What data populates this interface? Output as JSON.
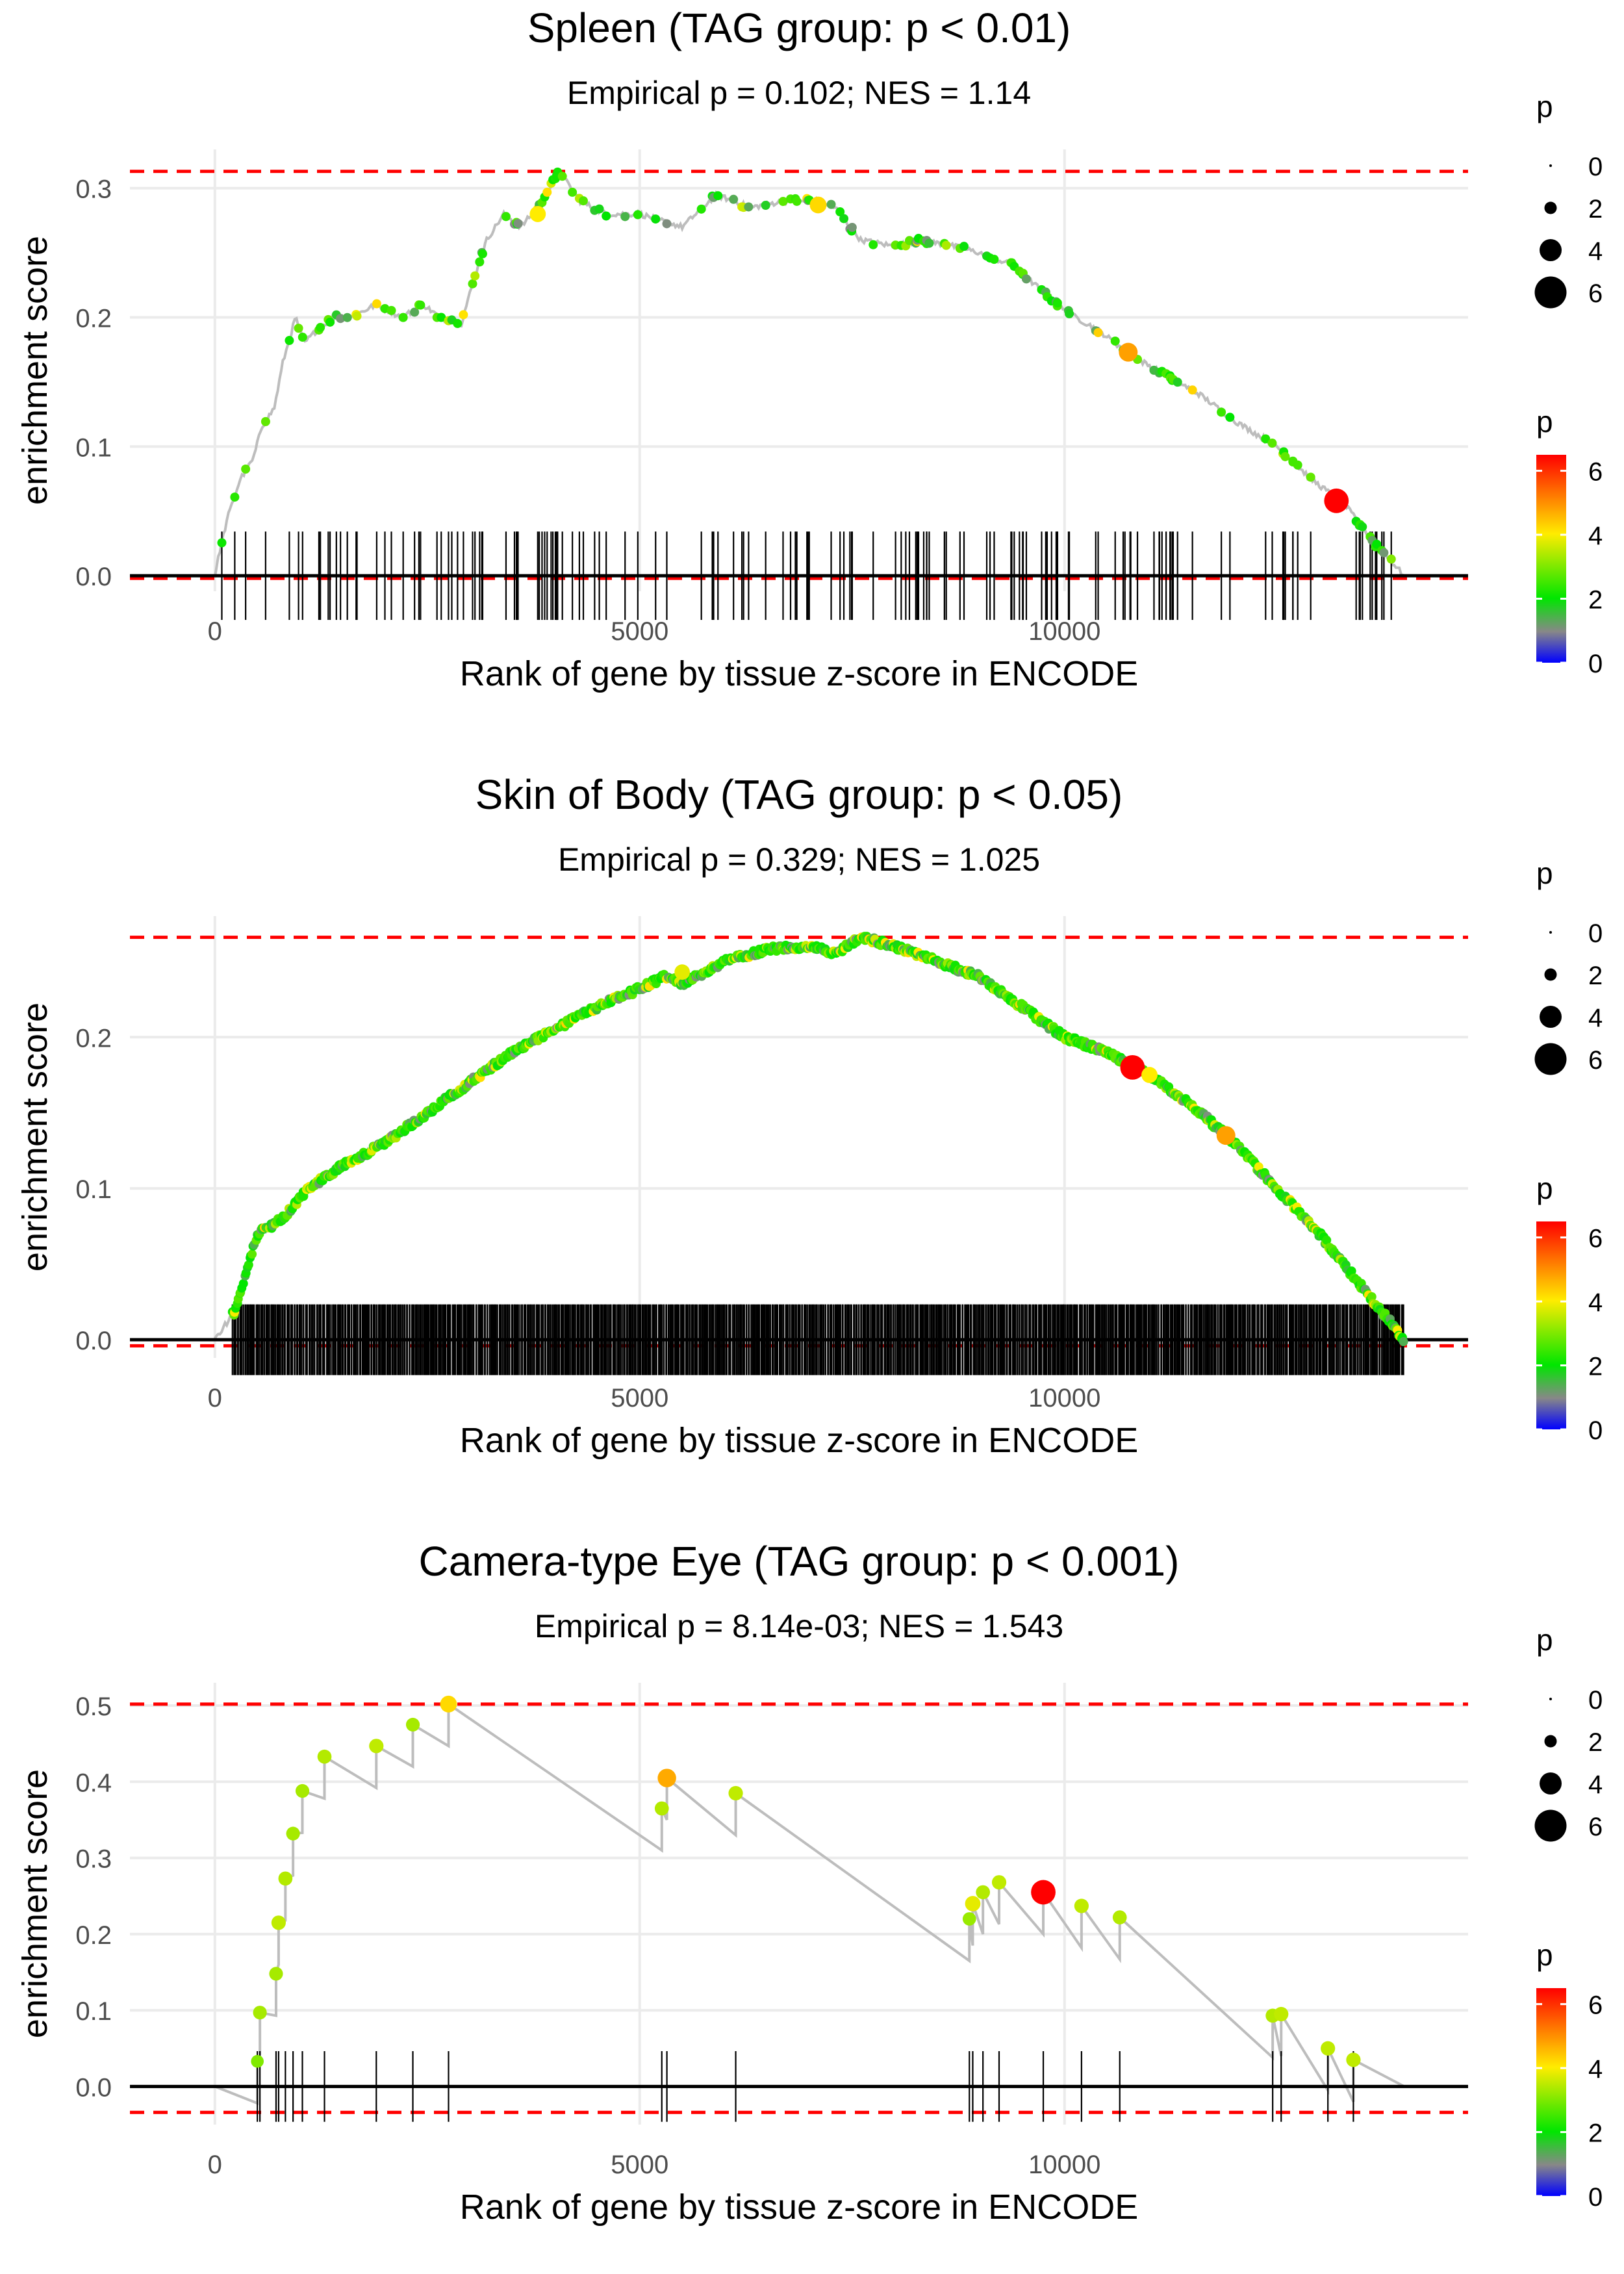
{
  "chart_data": [
    {
      "type": "line",
      "title": "Spleen (TAG group: p < 0.01)",
      "subtitle": "Empirical p = 0.102; NES = 1.14",
      "xlabel": "Rank of gene by tissue z-score in ENCODE",
      "ylabel": "enrichment score",
      "xlim": [
        -1000,
        14750
      ],
      "ylim": [
        -0.012,
        0.33
      ],
      "xticks": [
        0,
        5000,
        10000
      ],
      "yticks": [
        0.0,
        0.1,
        0.2,
        0.3
      ],
      "xtick_labels": [
        "0",
        "5000",
        "10000"
      ],
      "ytick_labels": [
        "0.0",
        "0.1",
        "0.2",
        "0.3"
      ],
      "max_line": 0.313,
      "min_line": -0.002,
      "x_end": 14000,
      "n_hits": 160,
      "dense": false,
      "hit_fraction": 0.15,
      "rug_fraction": 0.2,
      "dot_color": "#44ee22",
      "path": [
        [
          0,
          0
        ],
        [
          60,
          0.02
        ],
        [
          150,
          0.045
        ],
        [
          300,
          0.075
        ],
        [
          450,
          0.09
        ],
        [
          550,
          0.115
        ],
        [
          700,
          0.13
        ],
        [
          800,
          0.165
        ],
        [
          950,
          0.2
        ],
        [
          1050,
          0.18
        ],
        [
          1200,
          0.19
        ],
        [
          1400,
          0.2
        ],
        [
          1600,
          0.2
        ],
        [
          1900,
          0.21
        ],
        [
          2200,
          0.2
        ],
        [
          2450,
          0.21
        ],
        [
          2650,
          0.2
        ],
        [
          2900,
          0.195
        ],
        [
          3050,
          0.23
        ],
        [
          3200,
          0.26
        ],
        [
          3400,
          0.28
        ],
        [
          3600,
          0.27
        ],
        [
          3800,
          0.285
        ],
        [
          4050,
          0.313
        ],
        [
          4300,
          0.29
        ],
        [
          4600,
          0.28
        ],
        [
          5000,
          0.28
        ],
        [
          5500,
          0.27
        ],
        [
          5900,
          0.295
        ],
        [
          6300,
          0.285
        ],
        [
          6700,
          0.29
        ],
        [
          7100,
          0.29
        ],
        [
          7300,
          0.285
        ],
        [
          7600,
          0.26
        ],
        [
          8000,
          0.255
        ],
        [
          8300,
          0.26
        ],
        [
          8700,
          0.255
        ],
        [
          9000,
          0.25
        ],
        [
          9400,
          0.24
        ],
        [
          10000,
          0.205
        ],
        [
          10400,
          0.19
        ],
        [
          10800,
          0.17
        ],
        [
          11200,
          0.155
        ],
        [
          11600,
          0.14
        ],
        [
          12000,
          0.12
        ],
        [
          12500,
          0.1
        ],
        [
          12900,
          0.075
        ],
        [
          13300,
          0.055
        ],
        [
          13650,
          0.025
        ],
        [
          14000,
          0.0
        ]
      ],
      "highlights": [
        {
          "x": 13200,
          "y": 0.058,
          "p": 6.5
        },
        {
          "x": 10750,
          "y": 0.173,
          "p": 4.8
        },
        {
          "x": 7100,
          "y": 0.287,
          "p": 4.2
        },
        {
          "x": 3800,
          "y": 0.28,
          "p": 4.0
        }
      ],
      "legend_size": {
        "title": "p",
        "values": [
          "0",
          "2",
          "4",
          "6"
        ]
      },
      "legend_color": {
        "title": "p",
        "ticks": [
          "0",
          "2",
          "4",
          "6"
        ]
      }
    },
    {
      "type": "line",
      "title": "Skin of Body (TAG group: p < 0.05)",
      "subtitle": "Empirical p = 0.329; NES = 1.025",
      "xlabel": "Rank of gene by tissue z-score in ENCODE",
      "ylabel": "enrichment score",
      "xlim": [
        -1000,
        14750
      ],
      "ylim": [
        -0.012,
        0.28
      ],
      "xticks": [
        0,
        5000,
        10000
      ],
      "yticks": [
        0.0,
        0.1,
        0.2
      ],
      "xtick_labels": [
        "0",
        "5000",
        "10000"
      ],
      "ytick_labels": [
        "0.0",
        "0.1",
        "0.2"
      ],
      "max_line": 0.266,
      "min_line": -0.004,
      "x_end": 14000,
      "n_hits": 950,
      "dense": true,
      "hit_fraction": 0.13,
      "rug_fraction": 0.16,
      "dot_color": "#66dd33",
      "path": [
        [
          0,
          0
        ],
        [
          250,
          0.02
        ],
        [
          400,
          0.05
        ],
        [
          500,
          0.07
        ],
        [
          800,
          0.08
        ],
        [
          1100,
          0.1
        ],
        [
          1500,
          0.115
        ],
        [
          2000,
          0.13
        ],
        [
          2500,
          0.15
        ],
        [
          3000,
          0.17
        ],
        [
          3500,
          0.19
        ],
        [
          4000,
          0.205
        ],
        [
          4500,
          0.22
        ],
        [
          5000,
          0.232
        ],
        [
          5300,
          0.24
        ],
        [
          5500,
          0.235
        ],
        [
          6000,
          0.25
        ],
        [
          6500,
          0.258
        ],
        [
          7000,
          0.26
        ],
        [
          7300,
          0.255
        ],
        [
          7600,
          0.266
        ],
        [
          8000,
          0.26
        ],
        [
          8500,
          0.25
        ],
        [
          9000,
          0.24
        ],
        [
          9500,
          0.22
        ],
        [
          10000,
          0.2
        ],
        [
          10500,
          0.19
        ],
        [
          11000,
          0.175
        ],
        [
          11500,
          0.155
        ],
        [
          12000,
          0.13
        ],
        [
          12500,
          0.1
        ],
        [
          13000,
          0.07
        ],
        [
          13500,
          0.035
        ],
        [
          14000,
          0.0
        ]
      ],
      "highlights": [
        {
          "x": 10800,
          "y": 0.18,
          "p": 6.5
        },
        {
          "x": 11900,
          "y": 0.135,
          "p": 4.8
        },
        {
          "x": 11000,
          "y": 0.175,
          "p": 4.0
        },
        {
          "x": 5500,
          "y": 0.243,
          "p": 3.8
        }
      ],
      "legend_size": {
        "title": "p",
        "values": [
          "0",
          "2",
          "4",
          "6"
        ]
      },
      "legend_color": {
        "title": "p",
        "ticks": [
          "0",
          "2",
          "4",
          "6"
        ]
      }
    },
    {
      "type": "line",
      "title": "Camera-type Eye (TAG group: p < 0.001)",
      "subtitle": "Empirical p = 8.14e-03; NES = 1.543",
      "xlabel": "Rank of gene by tissue z-score in ENCODE",
      "ylabel": "enrichment score",
      "xlim": [
        -1000,
        14750
      ],
      "ylim": [
        -0.05,
        0.53
      ],
      "xticks": [
        0,
        5000,
        10000
      ],
      "yticks": [
        0.0,
        0.1,
        0.2,
        0.3,
        0.4,
        0.5
      ],
      "xtick_labels": [
        "0",
        "5000",
        "10000"
      ],
      "ytick_labels": [
        "0.0",
        "0.1",
        "0.2",
        "0.3",
        "0.4",
        "0.5"
      ],
      "max_line": 0.502,
      "min_line": -0.034,
      "x_end": 14000,
      "dense": false,
      "rug_fraction": 0.16,
      "hits": [
        {
          "x": 500,
          "y": 0.033,
          "p": 3.0
        },
        {
          "x": 530,
          "y": 0.097,
          "p": 3.3
        },
        {
          "x": 720,
          "y": 0.148,
          "p": 3.3
        },
        {
          "x": 750,
          "y": 0.215,
          "p": 3.5
        },
        {
          "x": 830,
          "y": 0.273,
          "p": 3.4
        },
        {
          "x": 920,
          "y": 0.332,
          "p": 3.3
        },
        {
          "x": 1030,
          "y": 0.388,
          "p": 3.3
        },
        {
          "x": 1290,
          "y": 0.433,
          "p": 3.4
        },
        {
          "x": 1900,
          "y": 0.447,
          "p": 3.5
        },
        {
          "x": 2330,
          "y": 0.475,
          "p": 3.3
        },
        {
          "x": 2750,
          "y": 0.502,
          "p": 4.2
        },
        {
          "x": 5260,
          "y": 0.365,
          "p": 3.4
        },
        {
          "x": 5320,
          "y": 0.405,
          "p": 4.7
        },
        {
          "x": 6130,
          "y": 0.385,
          "p": 3.5
        },
        {
          "x": 8880,
          "y": 0.22,
          "p": 3.2
        },
        {
          "x": 8920,
          "y": 0.24,
          "p": 3.8
        },
        {
          "x": 9040,
          "y": 0.255,
          "p": 3.4
        },
        {
          "x": 9230,
          "y": 0.268,
          "p": 3.5
        },
        {
          "x": 9750,
          "y": 0.255,
          "p": 6.5
        },
        {
          "x": 10200,
          "y": 0.237,
          "p": 3.5
        },
        {
          "x": 10650,
          "y": 0.222,
          "p": 3.4
        },
        {
          "x": 12450,
          "y": 0.093,
          "p": 3.4
        },
        {
          "x": 12550,
          "y": 0.095,
          "p": 3.5
        },
        {
          "x": 13100,
          "y": 0.05,
          "p": 3.5
        },
        {
          "x": 13400,
          "y": 0.035,
          "p": 3.5
        }
      ],
      "legend_size": {
        "title": "p",
        "values": [
          "0",
          "2",
          "4",
          "6"
        ]
      },
      "legend_color": {
        "title": "p",
        "ticks": [
          "0",
          "2",
          "4",
          "6"
        ]
      }
    }
  ]
}
